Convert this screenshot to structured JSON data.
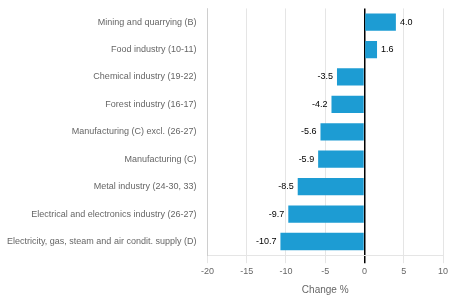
{
  "chart_data": {
    "type": "bar",
    "orientation": "horizontal",
    "categories": [
      "Electricity, gas, steam and air condit. supply (D)",
      "Electrical and electronics industry (26-27)",
      "Metal industry (24-30, 33)",
      "Manufacturing (C)",
      "Manufacturing (C) excl. (26-27)",
      "Forest industry (16-17)",
      "Chemical industry (19-22)",
      "Food industry (10-11)",
      "Mining and quarrying (B)"
    ],
    "values": [
      -10.7,
      -9.7,
      -8.5,
      -5.9,
      -5.6,
      -4.2,
      -3.5,
      1.6,
      4.0
    ],
    "value_labels": [
      "-10.7",
      "-9.7",
      "-8.5",
      "-5.9",
      "-5.6",
      "-4.2",
      "-3.5",
      "1.6",
      "4.0"
    ],
    "color": "#1d9cd3",
    "xlabel": "Change %",
    "xlim": [
      -20,
      10
    ],
    "xticks": [
      -20,
      -15,
      -10,
      -5,
      0,
      5,
      10
    ],
    "grid": true,
    "data_labels": true
  }
}
